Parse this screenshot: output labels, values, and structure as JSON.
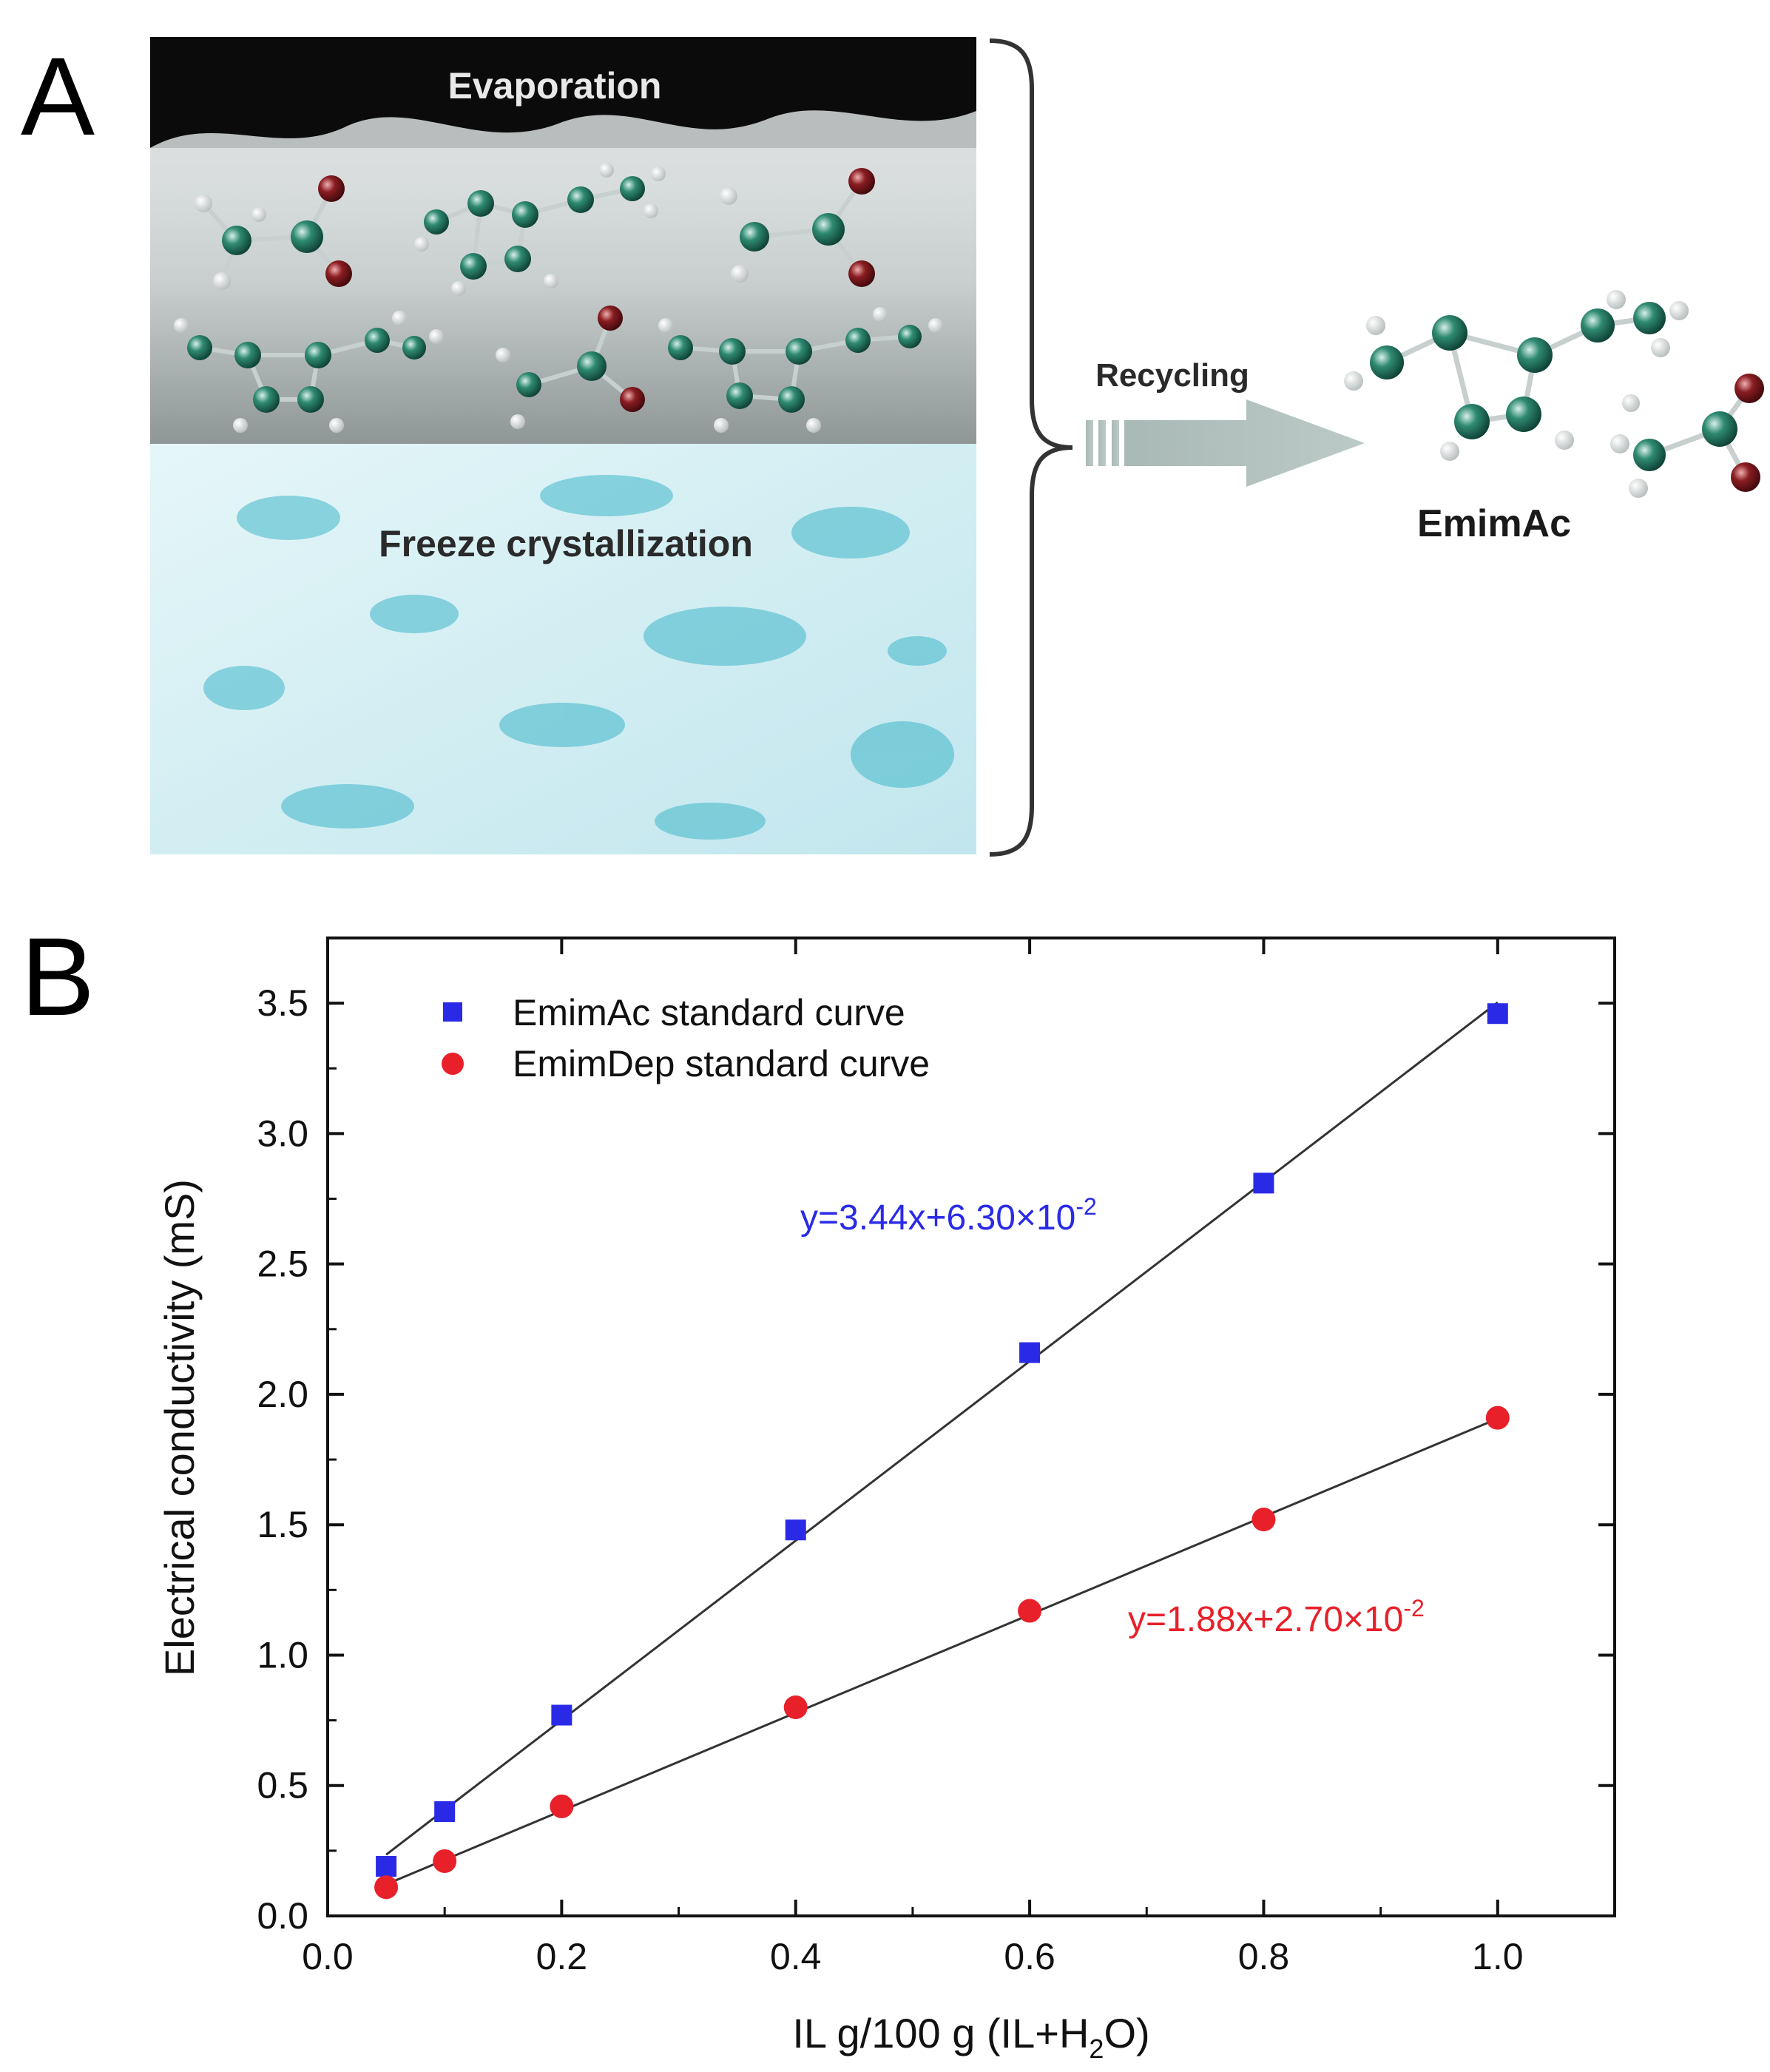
{
  "panel_a": {
    "letter": "A",
    "evaporation_label": "Evaporation",
    "freeze_label": "Freeze crystallization",
    "arrow_label": "Recycling",
    "product_label": "EmimAc"
  },
  "panel_b": {
    "letter": "B"
  },
  "chart_data": {
    "type": "scatter",
    "xlabel_main": "IL g/100 g (IL+H",
    "xlabel_sub": "2",
    "xlabel_end": "O)",
    "ylabel": "Electrical conductivity (mS)",
    "xlim": [
      0.0,
      1.1
    ],
    "ylim": [
      0.0,
      3.75
    ],
    "xticks": [
      "0.0",
      "0.2",
      "0.4",
      "0.6",
      "0.8",
      "1.0"
    ],
    "xtick_values": [
      0.0,
      0.2,
      0.4,
      0.6,
      0.8,
      1.0
    ],
    "yticks": [
      "0.0",
      "0.5",
      "1.0",
      "1.5",
      "2.0",
      "2.5",
      "3.0",
      "3.5"
    ],
    "ytick_values": [
      0.0,
      0.5,
      1.0,
      1.5,
      2.0,
      2.5,
      3.0,
      3.5
    ],
    "grid": false,
    "legend_position": "top-left",
    "series": [
      {
        "name": "EmimAc standard curve",
        "marker": "square",
        "color": "#2a2ae6",
        "x": [
          0.05,
          0.1,
          0.2,
          0.4,
          0.6,
          0.8,
          1.0
        ],
        "y": [
          0.19,
          0.4,
          0.77,
          1.48,
          2.16,
          2.81,
          3.46
        ],
        "fit": {
          "slope": 3.44,
          "intercept": 0.063
        },
        "equation_main": "y=3.44x+6.30×10",
        "equation_exp": "-2"
      },
      {
        "name": "EmimDep standard curve",
        "marker": "circle",
        "color": "#e8202a",
        "x": [
          0.05,
          0.1,
          0.2,
          0.4,
          0.6,
          0.8,
          1.0
        ],
        "y": [
          0.11,
          0.21,
          0.42,
          0.8,
          1.17,
          1.52,
          1.91
        ],
        "fit": {
          "slope": 1.88,
          "intercept": 0.027
        },
        "equation_main": "y=1.88x+2.70×10",
        "equation_exp": "-2"
      }
    ]
  }
}
